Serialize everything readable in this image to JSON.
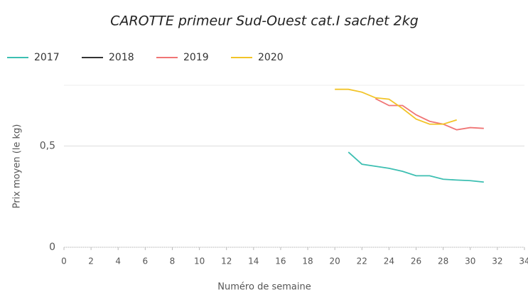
{
  "chart_data": {
    "type": "line",
    "title": "CAROTTE primeur Sud-Ouest cat.I sachet 2kg",
    "x_label": "Numéro de semaine",
    "y_label": "Prix moyen  (le kg)",
    "x": [
      20,
      21,
      22,
      23,
      24,
      25,
      26,
      27,
      28,
      29,
      30,
      31
    ],
    "series": [
      {
        "name": "2017",
        "color": "#3dbfb2",
        "values": [
          null,
          0.47,
          0.41,
          0.4,
          0.39,
          0.375,
          0.353,
          0.353,
          0.336,
          0.332,
          0.329,
          0.322
        ]
      },
      {
        "name": "2018",
        "color": "#333333",
        "values": [
          null,
          null,
          null,
          null,
          null,
          null,
          null,
          null,
          null,
          null,
          null,
          null
        ]
      },
      {
        "name": "2019",
        "color": "#f07575",
        "values": [
          null,
          null,
          null,
          0.734,
          0.7,
          0.7,
          0.654,
          0.622,
          0.608,
          0.58,
          0.591,
          0.587
        ]
      },
      {
        "name": "2020",
        "color": "#f2c428",
        "values": [
          0.78,
          0.78,
          0.766,
          0.738,
          0.731,
          0.685,
          0.633,
          0.608,
          0.608,
          0.629,
          null,
          null
        ]
      }
    ],
    "xlim": [
      0,
      34
    ],
    "xticks": [
      0,
      2,
      4,
      6,
      8,
      10,
      12,
      14,
      16,
      18,
      20,
      22,
      24,
      26,
      28,
      30,
      32,
      34
    ],
    "ylim": [
      0,
      0.8
    ],
    "yticks": [
      0,
      {
        "value": 0.5,
        "label": "0,5"
      }
    ],
    "grid": true
  }
}
